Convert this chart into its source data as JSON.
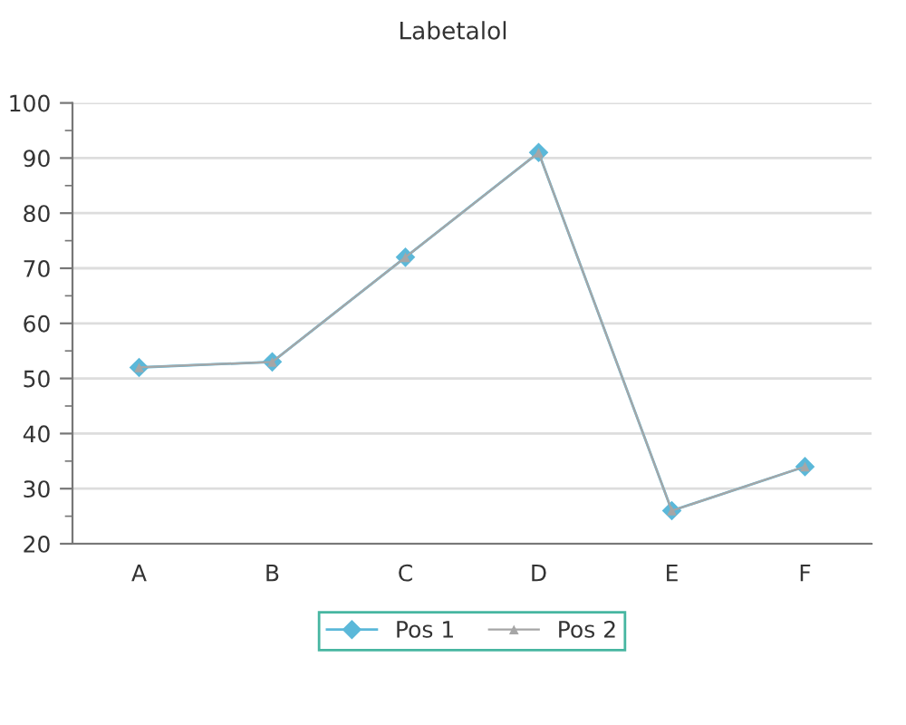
{
  "chart_data": {
    "type": "line",
    "title": "Labetalol",
    "categories": [
      "A",
      "B",
      "C",
      "D",
      "E",
      "F"
    ],
    "series": [
      {
        "name": "Pos 1",
        "color": "#5bb8d9",
        "marker": "diamond",
        "values": [
          52,
          53,
          72,
          91,
          26,
          34
        ]
      },
      {
        "name": "Pos 2",
        "color": "#a6a6a6",
        "marker": "triangle",
        "values": [
          52,
          53,
          72,
          91,
          26,
          34
        ]
      }
    ],
    "ylim": [
      20,
      100
    ],
    "yticks": [
      20,
      30,
      40,
      50,
      60,
      70,
      80,
      90,
      100
    ],
    "grid": "y",
    "legend": "bottom",
    "line_style": "solid"
  }
}
